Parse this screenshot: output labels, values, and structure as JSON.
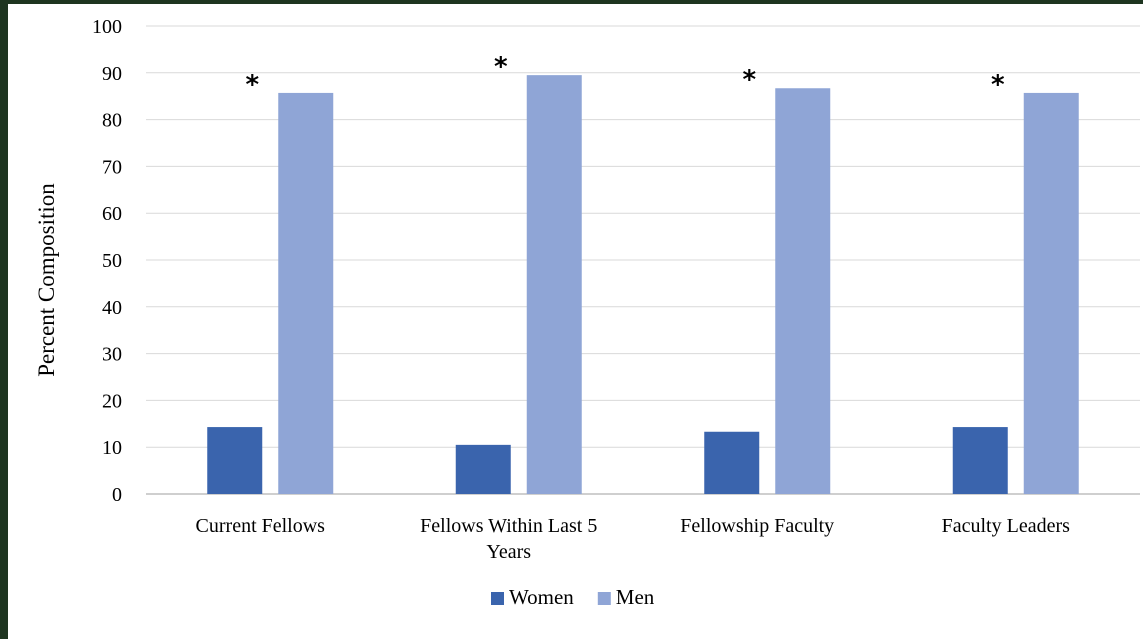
{
  "chart_data": {
    "type": "bar",
    "categories": [
      "Current Fellows",
      "Fellows Within Last 5 Years",
      "Fellowship Faculty",
      "Faculty Leaders"
    ],
    "category_lines": [
      [
        "Current Fellows"
      ],
      [
        "Fellows Within Last 5",
        "Years"
      ],
      [
        "Fellowship Faculty"
      ],
      [
        "Faculty Leaders"
      ]
    ],
    "series": [
      {
        "name": "Women",
        "values": [
          14.3,
          10.5,
          13.3,
          14.3
        ],
        "color": "#3a64ad"
      },
      {
        "name": "Men",
        "values": [
          85.7,
          89.5,
          86.7,
          85.7
        ],
        "color": "#8fa5d6"
      }
    ],
    "annotations": [
      "*",
      "*",
      "*",
      "*"
    ],
    "ylabel": "Percent Composition",
    "ylim": [
      0,
      100
    ],
    "yticks": [
      0,
      10,
      20,
      30,
      40,
      50,
      60,
      70,
      80,
      90,
      100
    ],
    "grid": true,
    "legend": "bottom",
    "gridColor": "#d9d9d9",
    "axisColor": "#bfbfbf"
  }
}
